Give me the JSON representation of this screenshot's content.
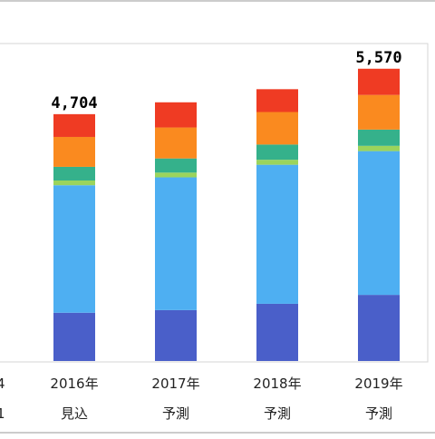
{
  "chart_data": {
    "type": "bar",
    "stacked": true,
    "categories": [
      "2016年\n見込",
      "2017年\n予測",
      "2018年\n予測",
      "2019年\n予測"
    ],
    "category_lines": [
      [
        "2016年",
        "見込"
      ],
      [
        "2017年",
        "予測"
      ],
      [
        "2018年",
        "予測"
      ],
      [
        "2019年",
        "予測"
      ]
    ],
    "totals": [
      4704,
      4930,
      5180,
      5570
    ],
    "total_labels": [
      "4,704",
      "",
      "",
      "5,570"
    ],
    "ylim": [
      0,
      6050
    ],
    "grid": false,
    "legend": "none",
    "series": [
      {
        "values": [
          920,
          970,
          1090,
          1260
        ],
        "color": "#4a5fc9"
      },
      {
        "values": [
          2430,
          2530,
          2650,
          2740
        ],
        "color": "#4eaff2"
      },
      {
        "values": [
          90,
          90,
          95,
          100
        ],
        "color": "#9bd45c"
      },
      {
        "values": [
          260,
          270,
          290,
          310
        ],
        "color": "#35b18b"
      },
      {
        "values": [
          570,
          590,
          620,
          660
        ],
        "color": "#fa8a1f"
      },
      {
        "values": [
          434,
          480,
          435,
          500
        ],
        "color": "#ef3b23"
      }
    ]
  }
}
